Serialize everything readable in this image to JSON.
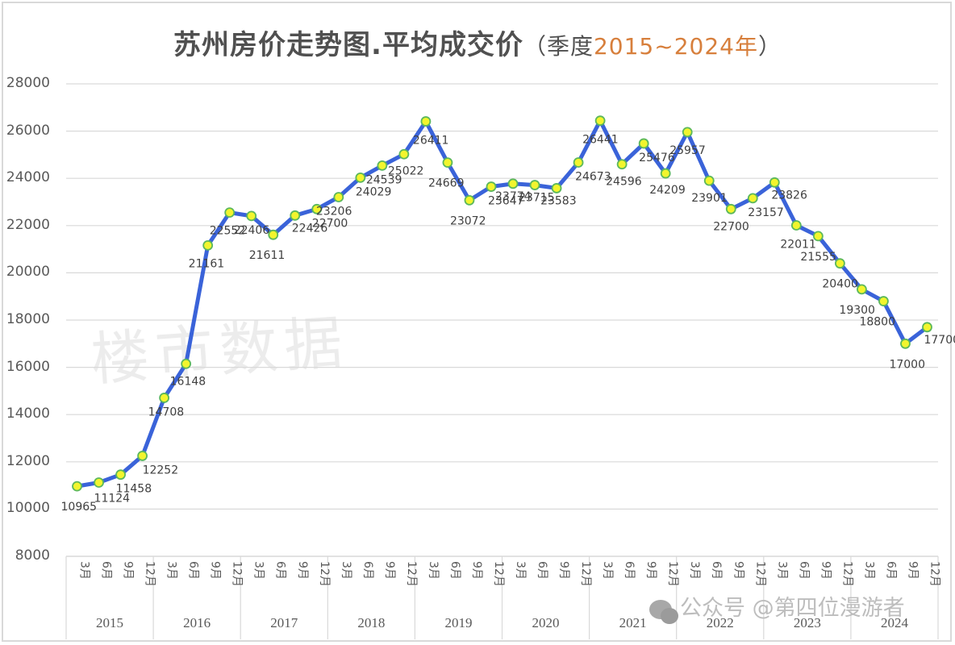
{
  "title": {
    "main": "苏州房价走势图.平均成交价",
    "sub_prefix": "（季度",
    "sub_range": "2015~2024年",
    "sub_suffix": "）",
    "range_color": "#d77f3c"
  },
  "watermark": "楼市数据",
  "wechat_watermark": {
    "icon": "wechat-icon",
    "text": "公众号 @第四位漫游者"
  },
  "colors": {
    "line": "#3a63d9",
    "marker_fill": "#f2f52e",
    "marker_stroke": "#5cb85c",
    "grid": "#d9d9d9",
    "label_text": "#404040"
  },
  "chart_data": {
    "type": "line",
    "title": "苏州房价走势图.平均成交价（季度2015~2024年）",
    "xlabel": "",
    "ylabel": "",
    "ylim": [
      8000,
      28000
    ],
    "yticks": [
      8000,
      10000,
      12000,
      14000,
      16000,
      18000,
      20000,
      22000,
      24000,
      26000,
      28000
    ],
    "grid": true,
    "legend": "none",
    "years": [
      "2015",
      "2016",
      "2017",
      "2018",
      "2019",
      "2020",
      "2021",
      "2022",
      "2023",
      "2024"
    ],
    "quarters": [
      "3月",
      "6月",
      "9月",
      "12月"
    ],
    "categories": [
      "2015-3月",
      "2015-6月",
      "2015-9月",
      "2015-12月",
      "2016-3月",
      "2016-6月",
      "2016-9月",
      "2016-12月",
      "2017-3月",
      "2017-6月",
      "2017-9月",
      "2017-12月",
      "2018-3月",
      "2018-6月",
      "2018-9月",
      "2018-12月",
      "2019-3月",
      "2019-6月",
      "2019-9月",
      "2019-12月",
      "2020-3月",
      "2020-6月",
      "2020-9月",
      "2020-12月",
      "2021-3月",
      "2021-6月",
      "2021-9月",
      "2021-12月",
      "2022-3月",
      "2022-6月",
      "2022-9月",
      "2022-12月",
      "2023-3月",
      "2023-6月",
      "2023-9月",
      "2023-12月",
      "2024-3月",
      "2024-6月",
      "2024-9月",
      "2024-12月"
    ],
    "series": [
      {
        "name": "平均成交价",
        "values": [
          10965,
          11124,
          11458,
          12252,
          14708,
          16148,
          21161,
          22552,
          22406,
          21611,
          22426,
          22700,
          23206,
          24029,
          24539,
          25022,
          26411,
          24669,
          23072,
          23647,
          23774,
          23715,
          23583,
          24673,
          26441,
          24596,
          25476,
          24209,
          25957,
          23901,
          22700,
          23157,
          23826,
          22011,
          21555,
          20400,
          19300,
          18800,
          17000,
          17700
        ],
        "labels": [
          "10965",
          "11124",
          "11458",
          "12252",
          "14708",
          "16148",
          "21161",
          "22552",
          "22406",
          "21611",
          "22426",
          "22700",
          "23206",
          "24029",
          "24539",
          "25022",
          "26411",
          "24669",
          "23072",
          "23647",
          "23774",
          "23715",
          "23583",
          "24673",
          "26441",
          "24596",
          "25476",
          "24209",
          "25957",
          "23901",
          "22700",
          "23157",
          "23826",
          "22011",
          "21555",
          "20400",
          "19300",
          "18800",
          "17000",
          "17700"
        ]
      }
    ]
  }
}
